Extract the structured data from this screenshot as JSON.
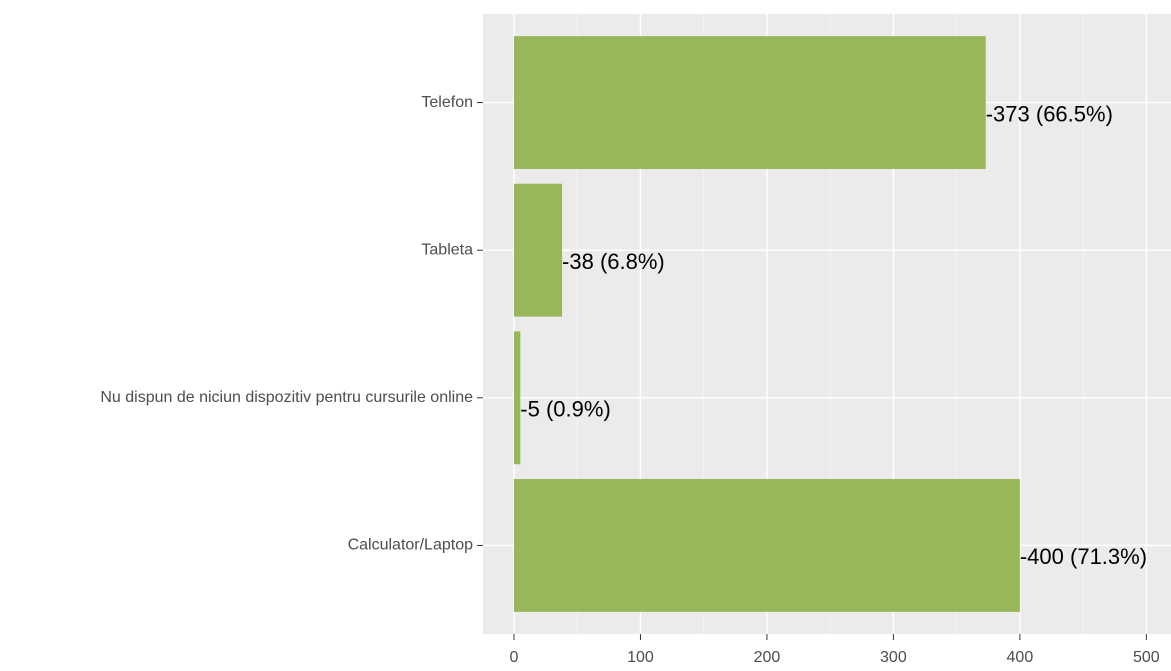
{
  "chart_data": {
    "type": "barh",
    "categories": [
      "Telefon",
      "Tableta",
      "Nu dispun de niciun dispozitiv pentru cursurile online",
      "Calculator/Laptop"
    ],
    "values": [
      373,
      38,
      5,
      400
    ],
    "value_labels": [
      "-373 (66.5%)",
      "-38 (6.8%)",
      "-5 (0.9%)",
      "-400 (71.3%)"
    ],
    "color": "#97b759",
    "xlim": [
      -24.5,
      519.5
    ],
    "xticks": [
      0,
      100,
      200,
      300,
      400,
      500
    ],
    "minor_xticks": [
      50,
      150,
      250,
      350,
      450
    ],
    "grid": true
  }
}
